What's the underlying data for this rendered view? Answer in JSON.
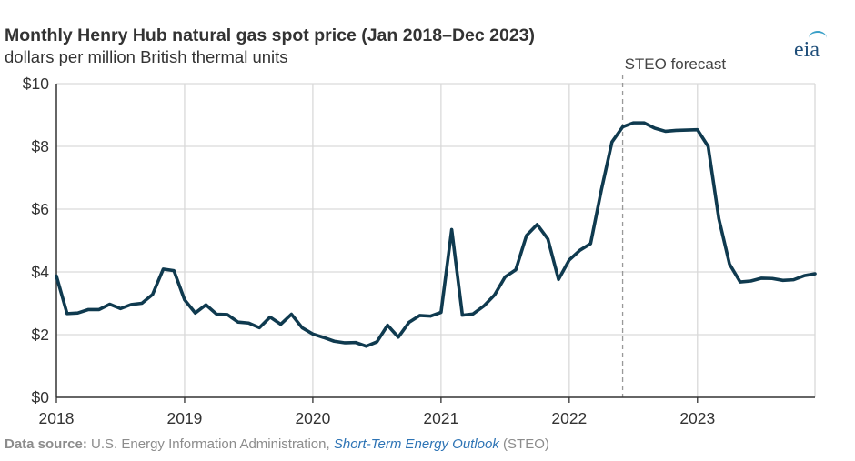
{
  "header": {
    "title": "Monthly Henry Hub natural gas spot price (Jan 2018–Dec 2023)",
    "subtitle": "dollars per million British thermal units",
    "logo_text": "eia"
  },
  "source": {
    "label": "Data source:",
    "text": "U.S. Energy Information Administration,",
    "link_text": "Short-Term Energy Outlook",
    "suffix": "(STEO)"
  },
  "colors": {
    "line": "#0f3a4f",
    "grid": "#d9d9d9",
    "forecast_line": "#999999",
    "logo_blue": "#1f4e79",
    "logo_arc": "#3aa0c8",
    "link": "#2e74b5"
  },
  "chart_data": {
    "type": "line",
    "title": "Monthly Henry Hub natural gas spot price (Jan 2018–Dec 2023)",
    "subtitle": "dollars per million British thermal units",
    "xlabel": "",
    "ylabel": "",
    "ylim": [
      0,
      10
    ],
    "yticks": [
      0,
      2,
      4,
      6,
      8,
      10
    ],
    "ytick_labels": [
      "$0",
      "$2",
      "$4",
      "$6",
      "$8",
      "$10"
    ],
    "xlim": [
      "2018-01",
      "2023-12"
    ],
    "xticks": [
      "2018-01",
      "2019-01",
      "2020-01",
      "2021-01",
      "2022-01",
      "2023-01"
    ],
    "xtick_labels": [
      "2018",
      "2019",
      "2020",
      "2021",
      "2022",
      "2023"
    ],
    "grid": true,
    "annotations": [
      {
        "text": "STEO forecast",
        "x": "2022-06",
        "style": "dashed-vertical-line"
      }
    ],
    "series": [
      {
        "x": [
          "2018-01",
          "2018-02",
          "2018-03",
          "2018-04",
          "2018-05",
          "2018-06",
          "2018-07",
          "2018-08",
          "2018-09",
          "2018-10",
          "2018-11",
          "2018-12",
          "2019-01",
          "2019-02",
          "2019-03",
          "2019-04",
          "2019-05",
          "2019-06",
          "2019-07",
          "2019-08",
          "2019-09",
          "2019-10",
          "2019-11",
          "2019-12",
          "2020-01",
          "2020-02",
          "2020-03",
          "2020-04",
          "2020-05",
          "2020-06",
          "2020-07",
          "2020-08",
          "2020-09",
          "2020-10",
          "2020-11",
          "2020-12",
          "2021-01",
          "2021-02",
          "2021-03",
          "2021-04",
          "2021-05",
          "2021-06",
          "2021-07",
          "2021-08",
          "2021-09",
          "2021-10",
          "2021-11",
          "2021-12",
          "2022-01",
          "2022-02",
          "2022-03",
          "2022-04",
          "2022-05",
          "2022-06",
          "2022-07",
          "2022-08",
          "2022-09",
          "2022-10",
          "2022-11",
          "2022-12",
          "2023-01",
          "2023-02",
          "2023-03",
          "2023-04",
          "2023-05",
          "2023-06",
          "2023-07",
          "2023-08",
          "2023-09",
          "2023-10",
          "2023-11",
          "2023-12"
        ],
        "values": [
          3.87,
          2.67,
          2.69,
          2.8,
          2.8,
          2.97,
          2.83,
          2.96,
          3.0,
          3.28,
          4.09,
          4.04,
          3.11,
          2.69,
          2.95,
          2.65,
          2.64,
          2.4,
          2.37,
          2.22,
          2.56,
          2.33,
          2.65,
          2.22,
          2.02,
          1.91,
          1.79,
          1.74,
          1.75,
          1.63,
          1.77,
          2.3,
          1.92,
          2.39,
          2.61,
          2.59,
          2.71,
          5.35,
          2.62,
          2.66,
          2.91,
          3.26,
          3.84,
          4.07,
          5.16,
          5.51,
          5.05,
          3.76,
          4.38,
          4.69,
          4.9,
          6.6,
          8.14,
          8.62,
          8.75,
          8.75,
          8.58,
          8.48,
          8.51,
          8.52,
          8.53,
          8.0,
          5.7,
          4.25,
          3.68,
          3.71,
          3.8,
          3.79,
          3.73,
          3.75,
          3.88,
          3.94
        ]
      }
    ]
  }
}
